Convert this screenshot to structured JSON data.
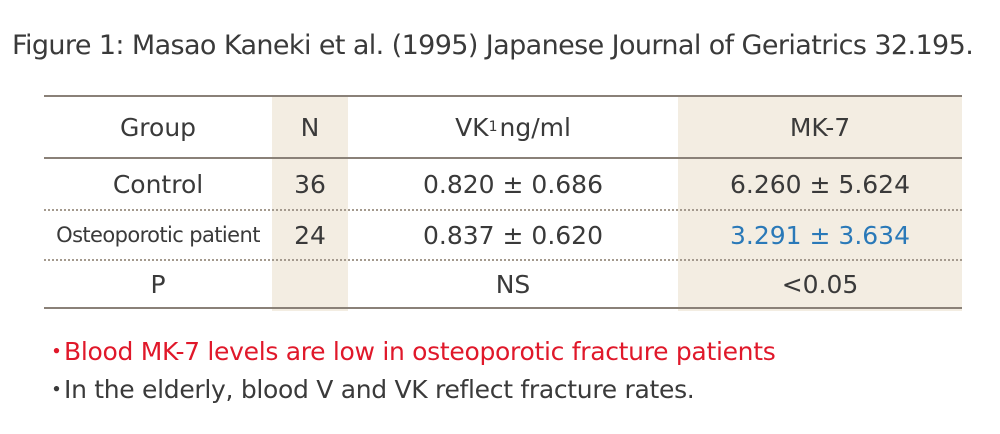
{
  "caption": "Figure 1: Masao Kaneki et al. (1995) Japanese Journal of Geriatrics 32.195.",
  "table": {
    "headers": {
      "group": "Group",
      "n": "N",
      "vk_main": "VK",
      "vk_sub": "1",
      "vk_unit": " ng/ml",
      "mk7": "MK-7"
    },
    "rows": [
      {
        "group": "Control",
        "n": "36",
        "vk": "0.820 ± 0.686",
        "mk7": "6.260 ± 5.624"
      },
      {
        "group": "Osteoporotic patient",
        "n": "24",
        "vk": "0.837 ± 0.620",
        "mk7": "3.291 ± 3.634"
      },
      {
        "group": "P",
        "n": "",
        "vk": "NS",
        "mk7": "<0.05"
      }
    ],
    "colors": {
      "shade": "#f3ede2",
      "highlight": "#2a79b8"
    }
  },
  "notes": [
    {
      "bullet": "・",
      "text": "Blood MK-7 levels are low in osteoporotic fracture patients",
      "color": "#e0182a"
    },
    {
      "bullet": "・",
      "text": "In the elderly, blood V and VK reflect fracture rates.",
      "color": "#3a3a3a"
    }
  ]
}
